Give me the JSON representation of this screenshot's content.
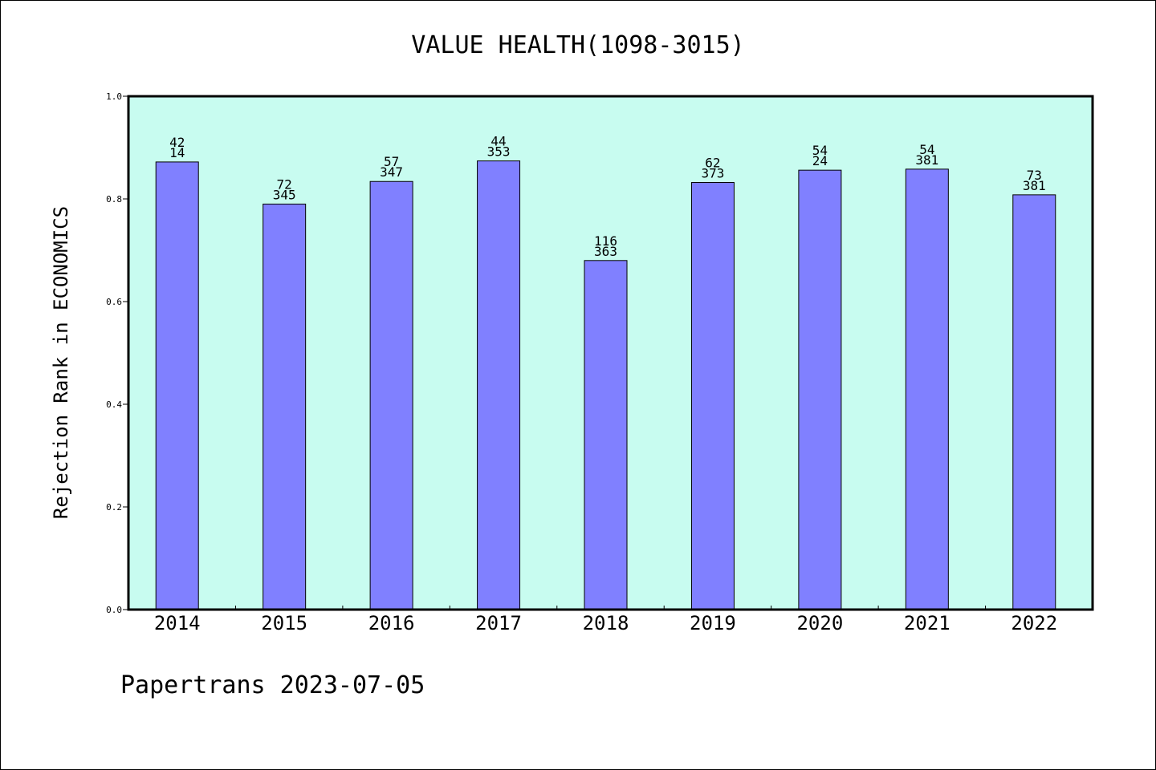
{
  "chart_data": {
    "type": "bar",
    "title": "VALUE HEALTH(1098-3015)",
    "xlabel": "",
    "ylabel": "Rejection Rank in ECONOMICS",
    "ylim": [
      0.0,
      1.0
    ],
    "yticks": [
      "0.0",
      "0.2",
      "0.4",
      "0.6",
      "0.8",
      "1.0"
    ],
    "categories": [
      "2014",
      "2015",
      "2016",
      "2017",
      "2018",
      "2019",
      "2020",
      "2021",
      "2022"
    ],
    "values": [
      0.872,
      0.79,
      0.834,
      0.874,
      0.68,
      0.832,
      0.856,
      0.858,
      0.808
    ],
    "label_top": [
      "42",
      "72",
      "57",
      "44",
      "116",
      "62",
      "54",
      "54",
      "73"
    ],
    "label_bottom": [
      "14",
      "345",
      "347",
      "353",
      "363",
      "373",
      "24",
      "381",
      "381"
    ],
    "grid": false,
    "colors": {
      "plot_background": "#c8fcf0",
      "bar_fill": "#8080ff",
      "bar_edge": "#000000"
    }
  },
  "footer": "Papertrans 2023-07-05"
}
